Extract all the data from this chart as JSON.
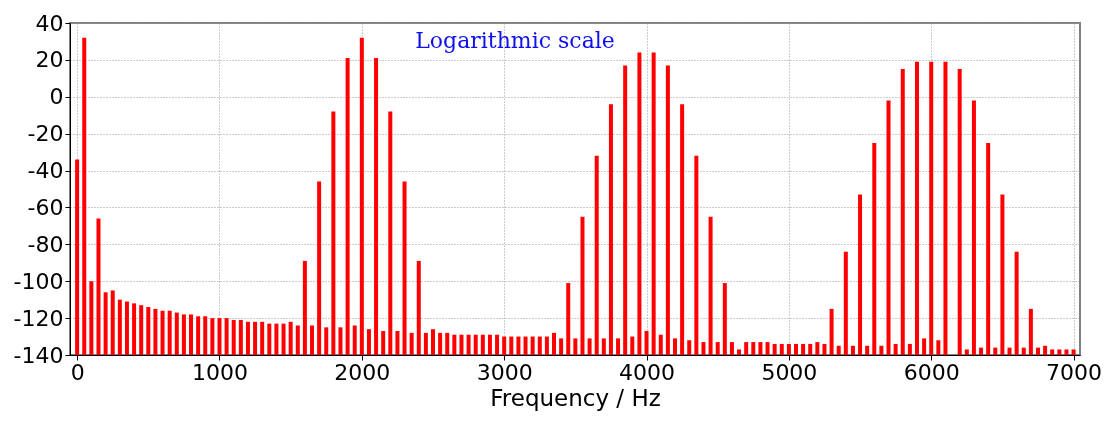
{
  "chart_data": {
    "type": "bar",
    "xlabel": "Frequency / Hz",
    "annotations": [
      "Logarithmic scale"
    ],
    "x": [
      0,
      50,
      100,
      150,
      200,
      250,
      300,
      350,
      400,
      450,
      500,
      550,
      600,
      650,
      700,
      750,
      800,
      850,
      900,
      950,
      1000,
      1050,
      1100,
      1150,
      1200,
      1250,
      1300,
      1350,
      1400,
      1450,
      1500,
      1550,
      1600,
      1650,
      1700,
      1750,
      1800,
      1850,
      1900,
      1950,
      2000,
      2050,
      2100,
      2150,
      2200,
      2250,
      2300,
      2350,
      2400,
      2450,
      2500,
      2550,
      2600,
      2650,
      2700,
      2750,
      2800,
      2850,
      2900,
      2950,
      3000,
      3050,
      3100,
      3150,
      3200,
      3250,
      3300,
      3350,
      3400,
      3450,
      3500,
      3550,
      3600,
      3650,
      3700,
      3750,
      3800,
      3850,
      3900,
      3950,
      4000,
      4050,
      4100,
      4150,
      4200,
      4250,
      4300,
      4350,
      4400,
      4450,
      4500,
      4550,
      4600,
      4650,
      4700,
      4750,
      4800,
      4850,
      4900,
      4950,
      5000,
      5050,
      5100,
      5150,
      5200,
      5250,
      5300,
      5350,
      5400,
      5450,
      5500,
      5550,
      5600,
      5650,
      5700,
      5750,
      5800,
      5850,
      5900,
      5950,
      6000,
      6050,
      6100,
      6150,
      6200,
      6250,
      6300,
      6350,
      6400,
      6450,
      6500,
      6550,
      6600,
      6650,
      6700,
      6750,
      6800,
      6850,
      6900,
      6950,
      7000
    ],
    "series": [
      {
        "color": "#ff0000",
        "base": [
          -140,
          -140,
          -140,
          -140,
          -140,
          -140,
          -140,
          -140,
          -140,
          -140,
          -140,
          -140,
          -140,
          -140,
          -140,
          -140,
          -140,
          -140,
          -140,
          -140,
          -140,
          -140,
          -140,
          -140,
          -140,
          -140,
          -140,
          -140,
          -140,
          -140,
          -140,
          -140,
          -140,
          -140,
          -140,
          -140,
          -140,
          -140,
          -140,
          -140,
          -140,
          -140,
          -140,
          -140,
          -140,
          -140,
          -140,
          -140,
          -140,
          -140,
          -140,
          -140,
          -140,
          -140,
          -140,
          -140,
          -140,
          -140,
          -140,
          -140,
          -140,
          -140,
          -140,
          -140,
          -140,
          -140,
          -140,
          -140,
          -140,
          -140,
          -140,
          -140,
          -140,
          -140,
          -140,
          -140,
          -140,
          -140,
          -140,
          -140,
          -140,
          -140,
          -140,
          -140,
          -140,
          -140,
          -140,
          -140,
          -140,
          -140,
          -140,
          -140,
          -140,
          -140,
          -140,
          -140,
          -140,
          -140,
          -140,
          -140,
          -140,
          -140,
          -140,
          -140,
          -140,
          -140,
          -140,
          -140,
          -140,
          -140,
          -140,
          -140,
          -140,
          -140,
          -140,
          -140,
          -140,
          -140,
          -140,
          -140,
          -140,
          -140,
          -140,
          null,
          -140,
          -140,
          -140,
          -140,
          -140,
          -140,
          -140,
          -140,
          -140,
          -140,
          -140,
          -140,
          -140,
          -140,
          -140,
          -140,
          -140
        ],
        "values": [
          106,
          172,
          40,
          74,
          34,
          35,
          30,
          29,
          28,
          27,
          26,
          25,
          24,
          24,
          23,
          22,
          22,
          21,
          21,
          20,
          20,
          20,
          19,
          19,
          18,
          18,
          18,
          17,
          17,
          17,
          18,
          16,
          51,
          16,
          94,
          15,
          132,
          15,
          161,
          16,
          172,
          14,
          161,
          13,
          132,
          13,
          94,
          12,
          51,
          12,
          14,
          12,
          12,
          11,
          11,
          11,
          11,
          11,
          11,
          11,
          10,
          10,
          10,
          10,
          10,
          10,
          10,
          12,
          9,
          39,
          9,
          75,
          9,
          108,
          9,
          136,
          9,
          157,
          10,
          164,
          13,
          164,
          11,
          157,
          9,
          136,
          8,
          108,
          7,
          75,
          7,
          39,
          7,
          3,
          7,
          7,
          7,
          7,
          6,
          6,
          6,
          6,
          6,
          6,
          7,
          6,
          25,
          5,
          56,
          5,
          87,
          5,
          115,
          5,
          138,
          6,
          155,
          6,
          159,
          9,
          159,
          8,
          159,
          null,
          155,
          3,
          138,
          4,
          115,
          4,
          87,
          4,
          56,
          4,
          25,
          4,
          5,
          3,
          3,
          3,
          3
        ]
      }
    ],
    "xlim": [
      -15,
      7010
    ],
    "xticks": [
      0,
      1000,
      2000,
      3000,
      4000,
      5000,
      6000,
      7000
    ],
    "ylim": [
      -140,
      40
    ],
    "yticks": [
      -140,
      -120,
      -100,
      -80,
      -60,
      -40,
      -20,
      0,
      20,
      40
    ],
    "grid": true
  }
}
